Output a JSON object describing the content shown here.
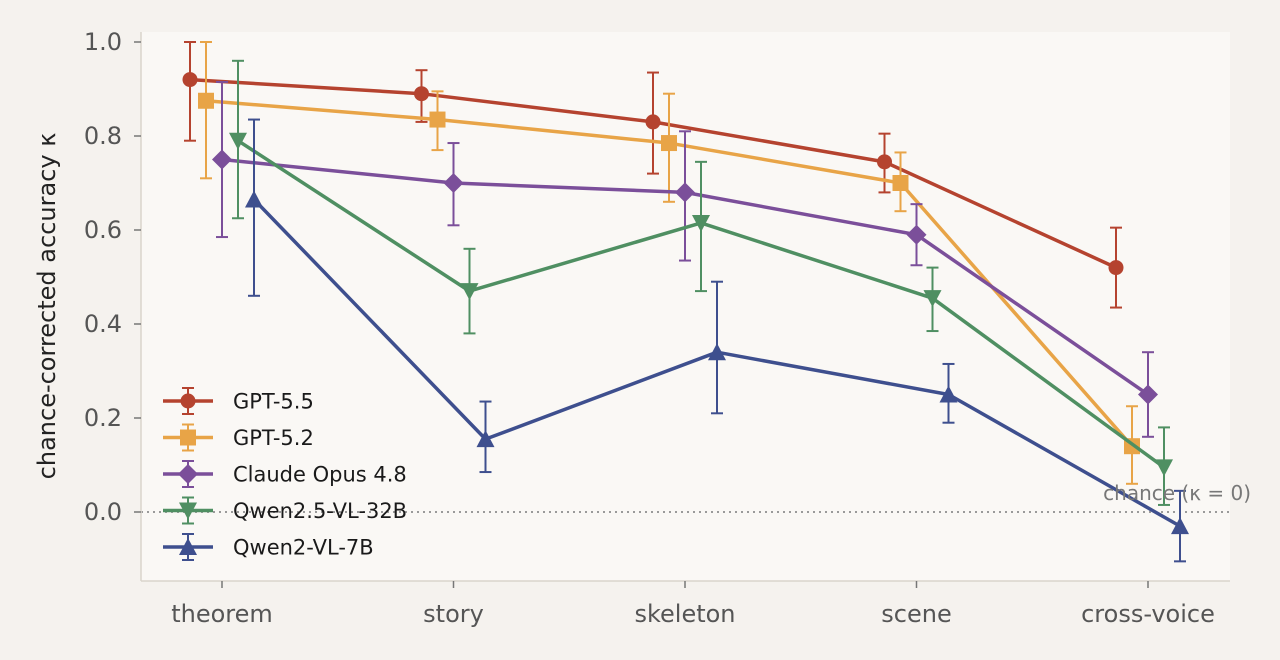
{
  "chart_data": {
    "type": "line",
    "title": "",
    "xlabel": "",
    "ylabel": "chance-corrected accuracy κ",
    "categories": [
      "theorem",
      "story",
      "skeleton",
      "scene",
      "cross-voice"
    ],
    "ylim": [
      -0.15,
      1.02
    ],
    "yticks": [
      0.0,
      0.2,
      0.4,
      0.6,
      0.8,
      1.0
    ],
    "ytick_labels": [
      "0.0",
      "0.2",
      "0.4",
      "0.6",
      "0.8",
      "1.0"
    ],
    "grid": false,
    "legend_position": "lower-left",
    "reference_line": {
      "y": 0,
      "label": "chance (κ = 0)",
      "style": "dotted"
    },
    "series": [
      {
        "name": "GPT-5.5",
        "color": "#b5432f",
        "marker": "circle",
        "values": [
          0.92,
          0.89,
          0.83,
          0.745,
          0.52
        ],
        "err_low": [
          0.79,
          0.83,
          0.72,
          0.68,
          0.435
        ],
        "err_high": [
          1.0,
          0.94,
          0.935,
          0.805,
          0.605
        ]
      },
      {
        "name": "GPT-5.2",
        "color": "#e8a447",
        "marker": "square",
        "values": [
          0.875,
          0.835,
          0.785,
          0.7,
          0.14
        ],
        "err_low": [
          0.71,
          0.77,
          0.66,
          0.64,
          0.06
        ],
        "err_high": [
          1.0,
          0.895,
          0.89,
          0.765,
          0.225
        ]
      },
      {
        "name": "Claude Opus 4.8",
        "color": "#7b4f9a",
        "marker": "diamond",
        "values": [
          0.75,
          0.7,
          0.68,
          0.59,
          0.25
        ],
        "err_low": [
          0.585,
          0.61,
          0.535,
          0.525,
          0.16
        ],
        "err_high": [
          0.915,
          0.785,
          0.81,
          0.655,
          0.34
        ]
      },
      {
        "name": "Qwen2.5-VL-32B",
        "color": "#4f8f62",
        "marker": "triangle-down",
        "values": [
          0.79,
          0.47,
          0.615,
          0.455,
          0.095
        ],
        "err_low": [
          0.625,
          0.38,
          0.47,
          0.385,
          0.015
        ],
        "err_high": [
          0.96,
          0.56,
          0.745,
          0.52,
          0.18
        ]
      },
      {
        "name": "Qwen2-VL-7B",
        "color": "#3e4f8e",
        "marker": "triangle-up",
        "values": [
          0.665,
          0.155,
          0.34,
          0.25,
          -0.03
        ],
        "err_low": [
          0.46,
          0.085,
          0.21,
          0.19,
          -0.105
        ],
        "err_high": [
          0.835,
          0.235,
          0.49,
          0.315,
          0.045
        ]
      }
    ]
  },
  "colors": {
    "page_background": "#f5f2ee",
    "plot_background": "#faf8f5",
    "axis": "#d9d4cc",
    "reference_line": "#9a9a9a"
  }
}
